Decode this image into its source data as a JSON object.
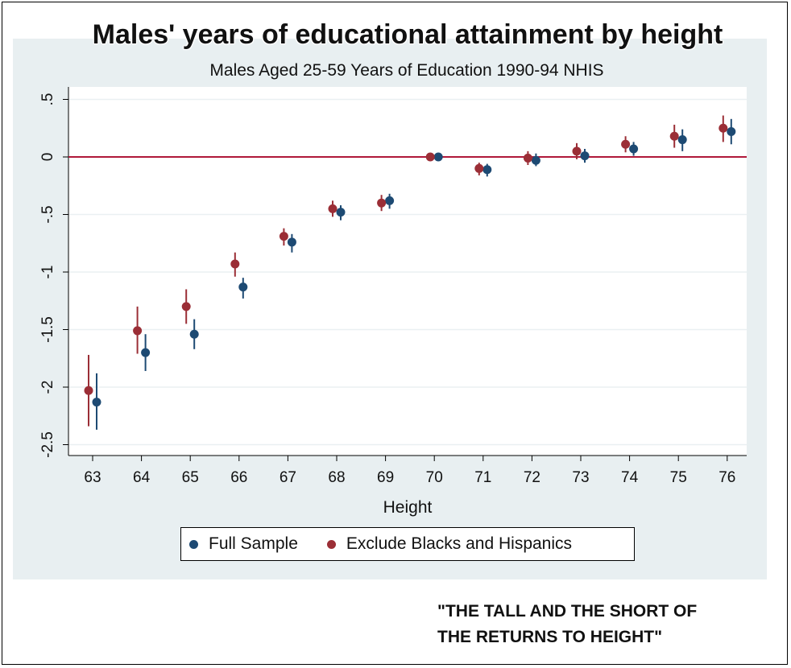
{
  "title": "Males' years of educational attainment by height",
  "subtitle": "Males Aged 25-59 Years of Education 1990-94 NHIS",
  "caption_line1": "\"THE TALL AND THE SHORT OF",
  "caption_line2": "THE RETURNS TO HEIGHT\"",
  "colors": {
    "full": "#1d4a73",
    "exclude": "#9b2e36",
    "zero_line": "#b0183a",
    "grid": "#eaf0f2",
    "panel": "#e8eff1"
  },
  "chart_data": {
    "type": "scatter",
    "xlabel": "Height",
    "ylabel": "",
    "categories": [
      63,
      64,
      65,
      66,
      67,
      68,
      69,
      70,
      71,
      72,
      73,
      74,
      75,
      76
    ],
    "x_tick_labels": [
      "63",
      "64",
      "65",
      "66",
      "67",
      "68",
      "69",
      "70",
      "71",
      "72",
      "73",
      "74",
      "75",
      "76"
    ],
    "y_ticks": [
      0.5,
      0,
      -0.5,
      -1,
      -1.5,
      -2,
      -2.5
    ],
    "y_tick_labels": [
      ".5",
      "0",
      "-.5",
      "-1",
      "-1.5",
      "-2",
      "-2.5"
    ],
    "ylim": [
      -2.6,
      0.55
    ],
    "reference_line": 0,
    "legend_position": "bottom",
    "grid": true,
    "series": [
      {
        "name": "Full Sample",
        "values": [
          -2.13,
          -1.7,
          -1.54,
          -1.13,
          -0.74,
          -0.48,
          -0.38,
          0.0,
          -0.11,
          -0.03,
          0.01,
          0.07,
          0.15,
          0.22
        ],
        "lower": [
          -2.37,
          -1.86,
          -1.67,
          -1.23,
          -0.83,
          -0.55,
          -0.45,
          0.0,
          -0.17,
          -0.08,
          -0.05,
          0.01,
          0.05,
          0.11
        ],
        "upper": [
          -1.88,
          -1.54,
          -1.41,
          -1.05,
          -0.67,
          -0.42,
          -0.32,
          0.0,
          -0.06,
          0.03,
          0.07,
          0.13,
          0.24,
          0.33
        ]
      },
      {
        "name": "Exclude Blacks and Hispanics",
        "values": [
          -2.03,
          -1.51,
          -1.3,
          -0.93,
          -0.69,
          -0.45,
          -0.4,
          0.0,
          -0.1,
          -0.01,
          0.05,
          0.11,
          0.18,
          0.25
        ],
        "lower": [
          -2.34,
          -1.71,
          -1.45,
          -1.04,
          -0.77,
          -0.52,
          -0.47,
          0.0,
          -0.16,
          -0.07,
          -0.02,
          0.04,
          0.08,
          0.13
        ],
        "upper": [
          -1.72,
          -1.3,
          -1.15,
          -0.83,
          -0.62,
          -0.38,
          -0.33,
          0.0,
          -0.05,
          0.05,
          0.12,
          0.18,
          0.28,
          0.36
        ]
      }
    ]
  }
}
